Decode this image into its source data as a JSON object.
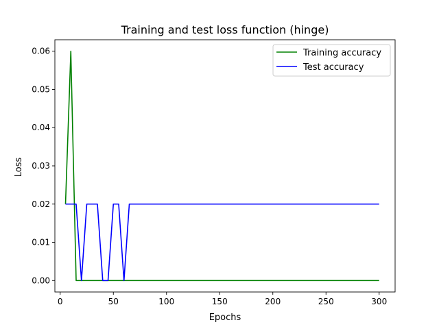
{
  "chart_data": {
    "type": "line",
    "title": "Training and test loss function (hinge)",
    "xlabel": "Epochs",
    "ylabel": "Loss",
    "xlim": [
      -5,
      315
    ],
    "ylim": [
      -0.003,
      0.063
    ],
    "xticks": [
      0,
      50,
      100,
      150,
      200,
      250,
      300
    ],
    "yticks": [
      0.0,
      0.01,
      0.02,
      0.03,
      0.04,
      0.05,
      0.06
    ],
    "xtick_labels": [
      "0",
      "50",
      "100",
      "150",
      "200",
      "250",
      "300"
    ],
    "ytick_labels": [
      "0.00",
      "0.01",
      "0.02",
      "0.03",
      "0.04",
      "0.05",
      "0.06"
    ],
    "legend_position": "top-right",
    "grid": false,
    "series": [
      {
        "name": "Training accuracy",
        "color": "#008000",
        "x": [
          5,
          10,
          15,
          300
        ],
        "y": [
          0.02,
          0.06,
          0.0,
          0.0
        ]
      },
      {
        "name": "Test accuracy",
        "color": "#0000ff",
        "x": [
          5,
          15,
          20,
          25,
          35,
          40,
          45,
          50,
          55,
          60,
          65,
          300
        ],
        "y": [
          0.02,
          0.02,
          0.0,
          0.02,
          0.02,
          0.0,
          0.0,
          0.02,
          0.02,
          0.0,
          0.02,
          0.02
        ]
      }
    ]
  }
}
